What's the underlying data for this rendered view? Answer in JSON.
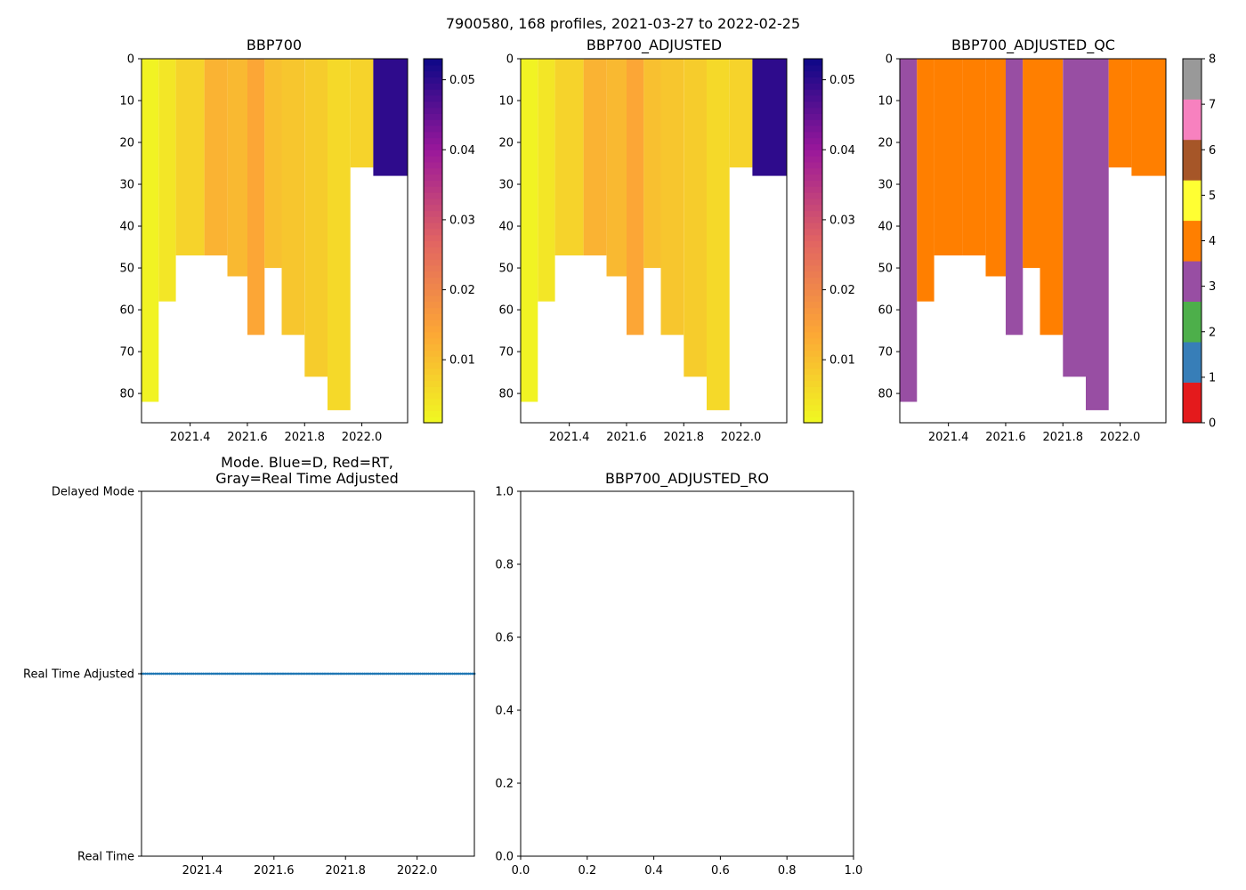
{
  "figure_title": "7900580, 168 profiles, 2021-03-27 to 2022-02-25",
  "chart_data": [
    {
      "id": "bbp700",
      "type": "heatmap",
      "title": "BBP700",
      "x_range": [
        2021.23,
        2022.16
      ],
      "y_range": [
        0,
        87
      ],
      "y_inverted": true,
      "x_ticks": [
        {
          "v": 2021.4,
          "label": "2021.4"
        },
        {
          "v": 2021.6,
          "label": "2021.6"
        },
        {
          "v": 2021.8,
          "label": "2021.8"
        },
        {
          "v": 2022.0,
          "label": "2022.0"
        }
      ],
      "y_ticks": [
        {
          "v": 0,
          "label": "0"
        },
        {
          "v": 10,
          "label": "10"
        },
        {
          "v": 20,
          "label": "20"
        },
        {
          "v": 30,
          "label": "30"
        },
        {
          "v": 40,
          "label": "40"
        },
        {
          "v": 50,
          "label": "50"
        },
        {
          "v": 60,
          "label": "60"
        },
        {
          "v": 70,
          "label": "70"
        },
        {
          "v": 80,
          "label": "80"
        }
      ],
      "colorbar": {
        "range": [
          0.001,
          0.053
        ],
        "colormap": "plasma_r",
        "ticks": [
          {
            "v": 0.01,
            "label": "0.01"
          },
          {
            "v": 0.02,
            "label": "0.02"
          },
          {
            "v": 0.03,
            "label": "0.03"
          },
          {
            "v": 0.04,
            "label": "0.04"
          },
          {
            "v": 0.05,
            "label": "0.05"
          }
        ]
      },
      "profile_bands": [
        {
          "x0": 2021.23,
          "x1": 2021.29,
          "max_depth": 82,
          "value": 0.002
        },
        {
          "x0": 2021.29,
          "x1": 2021.35,
          "max_depth": 58,
          "value": 0.004
        },
        {
          "x0": 2021.35,
          "x1": 2021.45,
          "max_depth": 47,
          "value": 0.007
        },
        {
          "x0": 2021.45,
          "x1": 2021.53,
          "max_depth": 47,
          "value": 0.012
        },
        {
          "x0": 2021.53,
          "x1": 2021.6,
          "max_depth": 52,
          "value": 0.011
        },
        {
          "x0": 2021.6,
          "x1": 2021.66,
          "max_depth": 66,
          "value": 0.014
        },
        {
          "x0": 2021.66,
          "x1": 2021.72,
          "max_depth": 50,
          "value": 0.01
        },
        {
          "x0": 2021.72,
          "x1": 2021.8,
          "max_depth": 66,
          "value": 0.009
        },
        {
          "x0": 2021.8,
          "x1": 2021.88,
          "max_depth": 76,
          "value": 0.008
        },
        {
          "x0": 2021.88,
          "x1": 2021.96,
          "max_depth": 84,
          "value": 0.006
        },
        {
          "x0": 2021.96,
          "x1": 2022.04,
          "max_depth": 26,
          "value": 0.007
        },
        {
          "x0": 2022.04,
          "x1": 2022.16,
          "max_depth": 28,
          "value": 0.05
        }
      ]
    },
    {
      "id": "bbp700-adjusted",
      "type": "heatmap",
      "title": "BBP700_ADJUSTED",
      "x_range": [
        2021.23,
        2022.16
      ],
      "y_range": [
        0,
        87
      ],
      "y_inverted": true,
      "x_ticks": [
        {
          "v": 2021.4,
          "label": "2021.4"
        },
        {
          "v": 2021.6,
          "label": "2021.6"
        },
        {
          "v": 2021.8,
          "label": "2021.8"
        },
        {
          "v": 2022.0,
          "label": "2022.0"
        }
      ],
      "y_ticks": [
        {
          "v": 0,
          "label": "0"
        },
        {
          "v": 10,
          "label": "10"
        },
        {
          "v": 20,
          "label": "20"
        },
        {
          "v": 30,
          "label": "30"
        },
        {
          "v": 40,
          "label": "40"
        },
        {
          "v": 50,
          "label": "50"
        },
        {
          "v": 60,
          "label": "60"
        },
        {
          "v": 70,
          "label": "70"
        },
        {
          "v": 80,
          "label": "80"
        }
      ],
      "colorbar": {
        "range": [
          0.001,
          0.053
        ],
        "colormap": "plasma_r",
        "ticks": [
          {
            "v": 0.01,
            "label": "0.01"
          },
          {
            "v": 0.02,
            "label": "0.02"
          },
          {
            "v": 0.03,
            "label": "0.03"
          },
          {
            "v": 0.04,
            "label": "0.04"
          },
          {
            "v": 0.05,
            "label": "0.05"
          }
        ]
      },
      "profile_bands": [
        {
          "x0": 2021.23,
          "x1": 2021.29,
          "max_depth": 82,
          "value": 0.002
        },
        {
          "x0": 2021.29,
          "x1": 2021.35,
          "max_depth": 58,
          "value": 0.004
        },
        {
          "x0": 2021.35,
          "x1": 2021.45,
          "max_depth": 47,
          "value": 0.007
        },
        {
          "x0": 2021.45,
          "x1": 2021.53,
          "max_depth": 47,
          "value": 0.012
        },
        {
          "x0": 2021.53,
          "x1": 2021.6,
          "max_depth": 52,
          "value": 0.011
        },
        {
          "x0": 2021.6,
          "x1": 2021.66,
          "max_depth": 66,
          "value": 0.014
        },
        {
          "x0": 2021.66,
          "x1": 2021.72,
          "max_depth": 50,
          "value": 0.01
        },
        {
          "x0": 2021.72,
          "x1": 2021.8,
          "max_depth": 66,
          "value": 0.009
        },
        {
          "x0": 2021.8,
          "x1": 2021.88,
          "max_depth": 76,
          "value": 0.008
        },
        {
          "x0": 2021.88,
          "x1": 2021.96,
          "max_depth": 84,
          "value": 0.006
        },
        {
          "x0": 2021.96,
          "x1": 2022.04,
          "max_depth": 26,
          "value": 0.007
        },
        {
          "x0": 2022.04,
          "x1": 2022.16,
          "max_depth": 28,
          "value": 0.05
        }
      ]
    },
    {
      "id": "bbp700-adjusted-qc",
      "type": "heatmap",
      "title": "BBP700_ADJUSTED_QC",
      "x_range": [
        2021.23,
        2022.16
      ],
      "y_range": [
        0,
        87
      ],
      "y_inverted": true,
      "x_ticks": [
        {
          "v": 2021.4,
          "label": "2021.4"
        },
        {
          "v": 2021.6,
          "label": "2021.6"
        },
        {
          "v": 2021.8,
          "label": "2021.8"
        },
        {
          "v": 2022.0,
          "label": "2022.0"
        }
      ],
      "y_ticks": [
        {
          "v": 0,
          "label": "0"
        },
        {
          "v": 10,
          "label": "10"
        },
        {
          "v": 20,
          "label": "20"
        },
        {
          "v": 30,
          "label": "30"
        },
        {
          "v": 40,
          "label": "40"
        },
        {
          "v": 50,
          "label": "50"
        },
        {
          "v": 60,
          "label": "60"
        },
        {
          "v": 70,
          "label": "70"
        },
        {
          "v": 80,
          "label": "80"
        }
      ],
      "colorbar": {
        "range": [
          0,
          8
        ],
        "colormap": "qc_categorical",
        "categories": [
          {
            "from": 0,
            "to": 1,
            "color": "#e41a1c"
          },
          {
            "from": 1,
            "to": 2,
            "color": "#377eb8"
          },
          {
            "from": 2,
            "to": 3,
            "color": "#4daf4a"
          },
          {
            "from": 3,
            "to": 4,
            "color": "#984ea3"
          },
          {
            "from": 4,
            "to": 5,
            "color": "#ff7f00"
          },
          {
            "from": 5,
            "to": 6,
            "color": "#ffff33"
          },
          {
            "from": 6,
            "to": 7,
            "color": "#a65628"
          },
          {
            "from": 7,
            "to": 8,
            "color": "#f781bf"
          },
          {
            "from": 8,
            "to": 9,
            "color": "#999999"
          }
        ],
        "ticks": [
          {
            "v": 0,
            "label": "0"
          },
          {
            "v": 1,
            "label": "1"
          },
          {
            "v": 2,
            "label": "2"
          },
          {
            "v": 3,
            "label": "3"
          },
          {
            "v": 4,
            "label": "4"
          },
          {
            "v": 5,
            "label": "5"
          },
          {
            "v": 6,
            "label": "6"
          },
          {
            "v": 7,
            "label": "7"
          },
          {
            "v": 8,
            "label": "8"
          }
        ]
      },
      "profile_bands": [
        {
          "x0": 2021.23,
          "x1": 2021.29,
          "max_depth": 82,
          "value": 3
        },
        {
          "x0": 2021.29,
          "x1": 2021.35,
          "max_depth": 58,
          "value": 4
        },
        {
          "x0": 2021.35,
          "x1": 2021.45,
          "max_depth": 47,
          "value": 4
        },
        {
          "x0": 2021.45,
          "x1": 2021.53,
          "max_depth": 47,
          "value": 4
        },
        {
          "x0": 2021.53,
          "x1": 2021.6,
          "max_depth": 52,
          "value": 4
        },
        {
          "x0": 2021.6,
          "x1": 2021.66,
          "max_depth": 66,
          "value": 3
        },
        {
          "x0": 2021.66,
          "x1": 2021.72,
          "max_depth": 50,
          "value": 4
        },
        {
          "x0": 2021.72,
          "x1": 2021.8,
          "max_depth": 66,
          "value": 4
        },
        {
          "x0": 2021.8,
          "x1": 2021.88,
          "max_depth": 76,
          "value": 3
        },
        {
          "x0": 2021.88,
          "x1": 2021.96,
          "max_depth": 84,
          "value": 3
        },
        {
          "x0": 2021.96,
          "x1": 2022.04,
          "max_depth": 26,
          "value": 4
        },
        {
          "x0": 2022.04,
          "x1": 2022.16,
          "max_depth": 28,
          "value": 4
        }
      ]
    },
    {
      "id": "mode",
      "type": "scatter",
      "title_lines": [
        "Mode. Blue=D, Red=RT,",
        "Gray=Real Time Adjusted"
      ],
      "x_range": [
        2021.23,
        2022.16
      ],
      "y_range": [
        0,
        2
      ],
      "x_ticks": [
        {
          "v": 2021.4,
          "label": "2021.4"
        },
        {
          "v": 2021.6,
          "label": "2021.6"
        },
        {
          "v": 2021.8,
          "label": "2021.8"
        },
        {
          "v": 2022.0,
          "label": "2022.0"
        }
      ],
      "y_ticks": [
        {
          "v": 0,
          "label": "Real Time"
        },
        {
          "v": 1,
          "label": "Real Time Adjusted"
        },
        {
          "v": 2,
          "label": "Delayed Mode"
        }
      ],
      "series": [
        {
          "name": "mode",
          "color": "#1f77b4",
          "y_value": 1,
          "x_start": 2021.23,
          "x_end": 2022.16,
          "profile_count": 168
        }
      ]
    },
    {
      "id": "bbp700-adjusted-ro",
      "type": "line",
      "title": "BBP700_ADJUSTED_RO",
      "x_range": [
        0,
        1
      ],
      "y_range": [
        0,
        1
      ],
      "x_ticks": [
        {
          "v": 0,
          "label": "0.0"
        },
        {
          "v": 0.2,
          "label": "0.2"
        },
        {
          "v": 0.4,
          "label": "0.4"
        },
        {
          "v": 0.6,
          "label": "0.6"
        },
        {
          "v": 0.8,
          "label": "0.8"
        },
        {
          "v": 1,
          "label": "1.0"
        }
      ],
      "y_ticks": [
        {
          "v": 0,
          "label": "0.0"
        },
        {
          "v": 0.2,
          "label": "0.2"
        },
        {
          "v": 0.4,
          "label": "0.4"
        },
        {
          "v": 0.6,
          "label": "0.6"
        },
        {
          "v": 0.8,
          "label": "0.8"
        },
        {
          "v": 1,
          "label": "1.0"
        }
      ],
      "series": []
    }
  ]
}
